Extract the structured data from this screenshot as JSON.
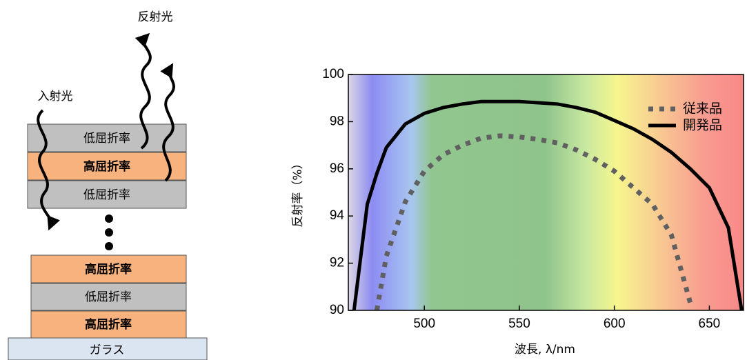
{
  "diagram": {
    "incident_light": "入射光",
    "reflected_light": "反射光",
    "layers": [
      "低屈折率",
      "高屈折率",
      "低屈折率",
      "高屈折率",
      "低屈折率",
      "高屈折率"
    ],
    "substrate": "ガラス"
  },
  "chart_data": {
    "type": "line",
    "xlabel": "波長, λ/nm",
    "ylabel": "反射率（%）",
    "x": [
      463,
      470,
      475,
      480,
      490,
      500,
      510,
      520,
      530,
      540,
      550,
      560,
      570,
      580,
      590,
      600,
      610,
      620,
      630,
      640,
      650,
      660,
      667
    ],
    "series": [
      {
        "name": "従来品",
        "color": "#606060",
        "line_style": "dotted",
        "values": [
          null,
          null,
          90,
          92.3,
          94.6,
          95.9,
          96.6,
          97.0,
          97.3,
          97.4,
          97.35,
          97.25,
          97.1,
          96.8,
          96.4,
          95.9,
          95.2,
          94.5,
          93.2,
          90.3,
          null,
          null,
          null
        ]
      },
      {
        "name": "開発品",
        "color": "#000000",
        "line_style": "solid",
        "values": [
          90,
          94.5,
          95.8,
          96.9,
          97.9,
          98.35,
          98.6,
          98.75,
          98.85,
          98.85,
          98.85,
          98.8,
          98.75,
          98.6,
          98.4,
          98.05,
          97.7,
          97.25,
          96.7,
          96.0,
          95.2,
          93.5,
          90
        ]
      }
    ],
    "xlim": [
      460,
      668
    ],
    "ylim": [
      90,
      100
    ],
    "xticks": [
      500,
      550,
      600,
      650
    ],
    "yticks": [
      90,
      92,
      94,
      96,
      98,
      100
    ],
    "legend": "upper right"
  }
}
